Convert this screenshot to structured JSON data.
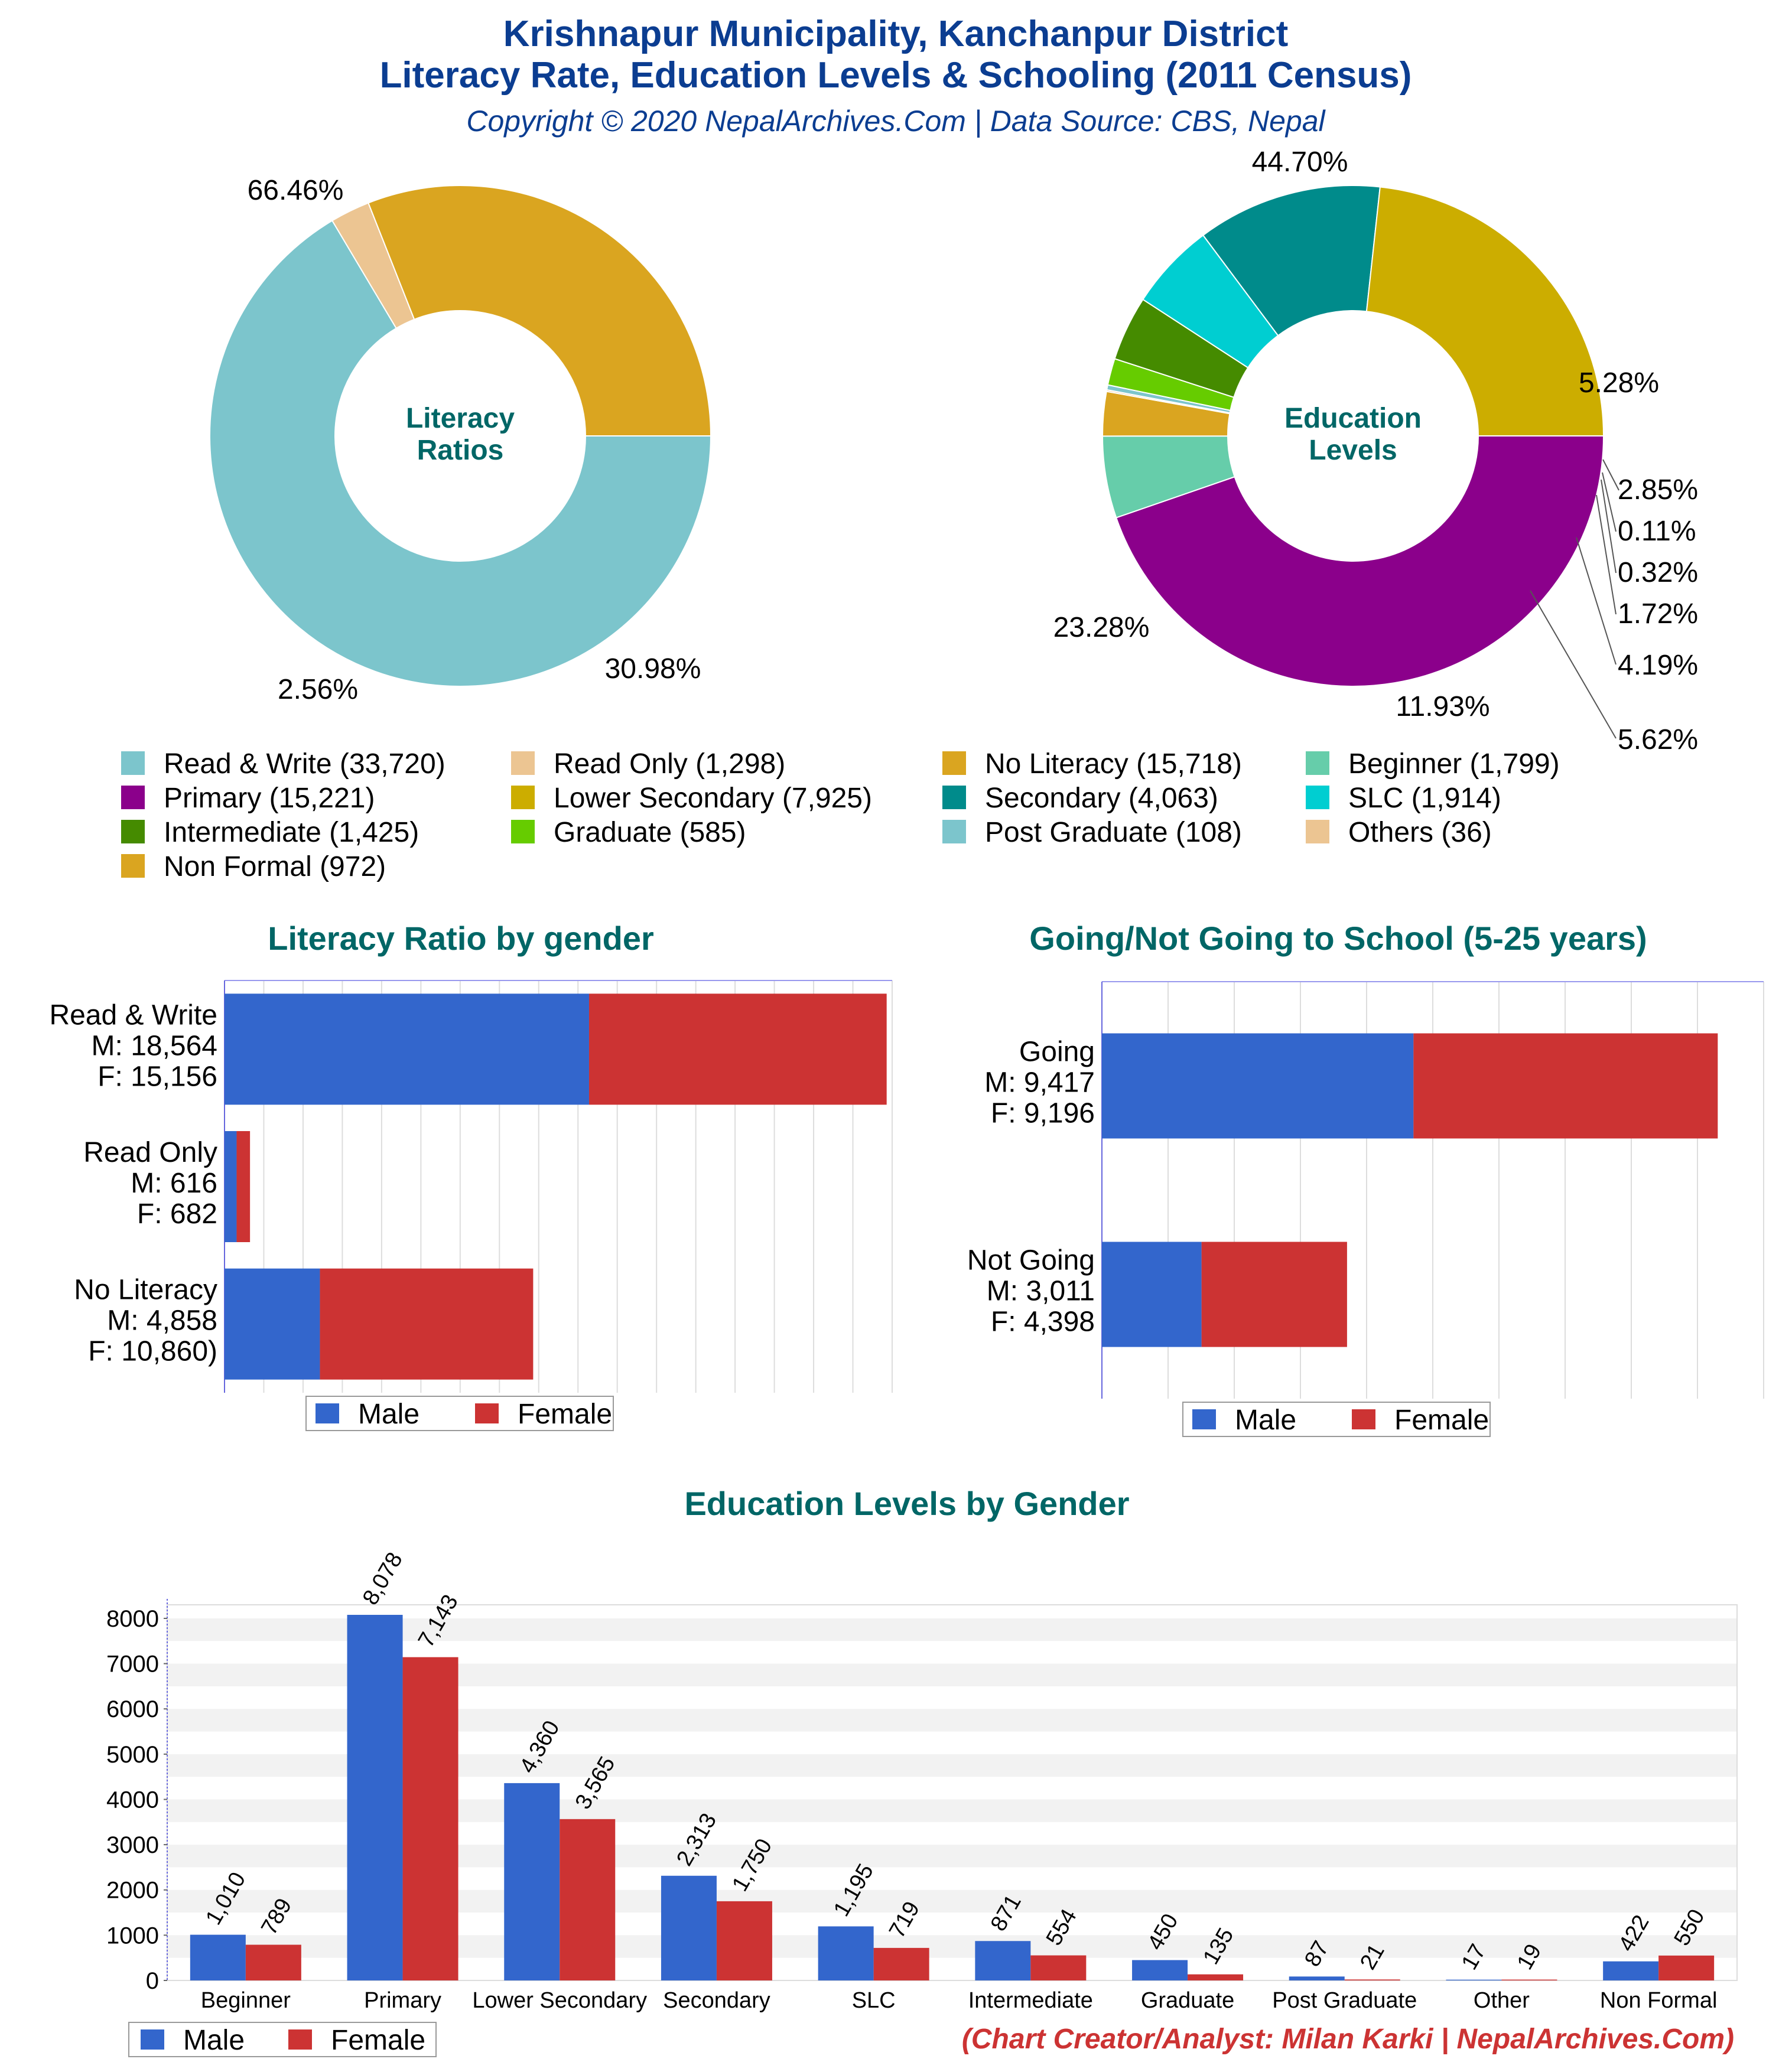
{
  "header": {
    "title_line1": "Krishnapur Municipality, Kanchanpur District",
    "title_line2": "Literacy Rate, Education Levels & Schooling (2011 Census)",
    "copyright": "Copyright © 2020 NepalArchives.Com | Data Source: CBS, Nepal"
  },
  "footer": {
    "credit": "(Chart Creator/Analyst: Milan Karki | NepalArchives.Com)"
  },
  "colors": {
    "title": "#0b3d91",
    "section_title": "#006666",
    "credit": "#cc3333",
    "male": "#3366cc",
    "female": "#cc3333"
  },
  "chart_data": [
    {
      "id": "literacy-donut",
      "type": "pie",
      "center_label": [
        "Literacy",
        "Ratios"
      ],
      "slices": [
        {
          "name": "Read & Write",
          "value": 33720,
          "pct_label": "66.46%",
          "color": "#7cc5cc"
        },
        {
          "name": "Read Only",
          "value": 1298,
          "pct_label": "2.56%",
          "color": "#ecc592"
        },
        {
          "name": "No Literacy",
          "value": 15718,
          "pct_label": "30.98%",
          "color": "#daa520"
        }
      ]
    },
    {
      "id": "education-donut",
      "type": "pie",
      "center_label": [
        "Education",
        "Levels"
      ],
      "slices": [
        {
          "name": "Primary",
          "value": 15221,
          "pct_label": "44.70%",
          "color": "#8b008b"
        },
        {
          "name": "Beginner",
          "value": 1799,
          "pct_label": "5.28%",
          "color": "#66cdaa"
        },
        {
          "name": "Non Formal",
          "value": 972,
          "pct_label": "2.85%",
          "color": "#daa520"
        },
        {
          "name": "Others",
          "value": 36,
          "pct_label": "0.11%",
          "color": "#ecc592"
        },
        {
          "name": "Post Graduate",
          "value": 108,
          "pct_label": "0.32%",
          "color": "#7cc5cc"
        },
        {
          "name": "Graduate",
          "value": 585,
          "pct_label": "1.72%",
          "color": "#66cc00"
        },
        {
          "name": "Intermediate",
          "value": 1425,
          "pct_label": "4.19%",
          "color": "#458b00"
        },
        {
          "name": "SLC",
          "value": 1914,
          "pct_label": "5.62%",
          "color": "#00ced1"
        },
        {
          "name": "Secondary",
          "value": 4063,
          "pct_label": "11.93%",
          "color": "#008b8b"
        },
        {
          "name": "Lower Secondary",
          "value": 7925,
          "pct_label": "23.28%",
          "color": "#ccad00"
        }
      ]
    },
    {
      "id": "legend-top",
      "type": "table",
      "items": [
        {
          "label": "Read & Write (33,720)",
          "color": "#7cc5cc"
        },
        {
          "label": "Read Only (1,298)",
          "color": "#ecc592"
        },
        {
          "label": "No Literacy (15,718)",
          "color": "#daa520"
        },
        {
          "label": "Beginner (1,799)",
          "color": "#66cdaa"
        },
        {
          "label": "Primary (15,221)",
          "color": "#8b008b"
        },
        {
          "label": "Lower Secondary (7,925)",
          "color": "#ccad00"
        },
        {
          "label": "Secondary (4,063)",
          "color": "#008b8b"
        },
        {
          "label": "SLC (1,914)",
          "color": "#00ced1"
        },
        {
          "label": "Intermediate (1,425)",
          "color": "#458b00"
        },
        {
          "label": "Graduate (585)",
          "color": "#66cc00"
        },
        {
          "label": "Post Graduate (108)",
          "color": "#7cc5cc"
        },
        {
          "label": "Others (36)",
          "color": "#ecc592"
        },
        {
          "label": "Non Formal (972)",
          "color": "#daa520"
        }
      ]
    },
    {
      "id": "literacy-by-gender",
      "type": "bar",
      "title": "Literacy Ratio by gender",
      "orientation": "horizontal-stacked",
      "categories": [
        "Read & Write",
        "Read Only",
        "No Literacy"
      ],
      "category_labels": [
        [
          "Read & Write",
          "M: 18,564",
          "F: 15,156"
        ],
        [
          "Read Only",
          "M: 616",
          "F: 682"
        ],
        [
          "No Literacy",
          "M: 4,858",
          "F: 10,860)"
        ]
      ],
      "series": [
        {
          "name": "Male",
          "values": [
            18564,
            616,
            4858
          ]
        },
        {
          "name": "Female",
          "values": [
            15156,
            682,
            10860
          ]
        }
      ],
      "xlim": [
        0,
        34000
      ],
      "grid": true,
      "legend": "bottom"
    },
    {
      "id": "school-by-gender",
      "type": "bar",
      "title": "Going/Not Going to School (5-25 years)",
      "orientation": "horizontal-stacked",
      "categories": [
        "Going",
        "Not Going"
      ],
      "category_labels": [
        [
          "Going",
          "M: 9,417",
          "F: 9,196"
        ],
        [
          "Not Going",
          "M: 3,011",
          "F: 4,398"
        ]
      ],
      "series": [
        {
          "name": "Male",
          "values": [
            9417,
            3011
          ]
        },
        {
          "name": "Female",
          "values": [
            9196,
            4398
          ]
        }
      ],
      "xlim": [
        0,
        20000
      ],
      "grid": true,
      "legend": "bottom"
    },
    {
      "id": "education-by-gender",
      "type": "bar",
      "title": "Education Levels by Gender",
      "categories": [
        "Beginner",
        "Primary",
        "Lower Secondary",
        "Secondary",
        "SLC",
        "Intermediate",
        "Graduate",
        "Post Graduate",
        "Other",
        "Non Formal"
      ],
      "series": [
        {
          "name": "Male",
          "values": [
            1010,
            8078,
            4360,
            2313,
            1195,
            871,
            450,
            87,
            17,
            422
          ]
        },
        {
          "name": "Female",
          "values": [
            789,
            7143,
            3565,
            1750,
            719,
            554,
            135,
            21,
            19,
            550
          ]
        }
      ],
      "value_labels": {
        "Male": [
          "1,010",
          "8,078",
          "4,360",
          "2,313",
          "1,195",
          "871",
          "450",
          "87",
          "17",
          "422"
        ],
        "Female": [
          "789",
          "7,143",
          "3,565",
          "1,750",
          "719",
          "554",
          "135",
          "21",
          "19",
          "550"
        ]
      },
      "yticks": [
        "0",
        "1000",
        "2000",
        "3000",
        "4000",
        "5000",
        "6000",
        "7000",
        "8000"
      ],
      "ylim": [
        0,
        8300
      ],
      "grid": true,
      "legend": "bottom-left"
    }
  ]
}
